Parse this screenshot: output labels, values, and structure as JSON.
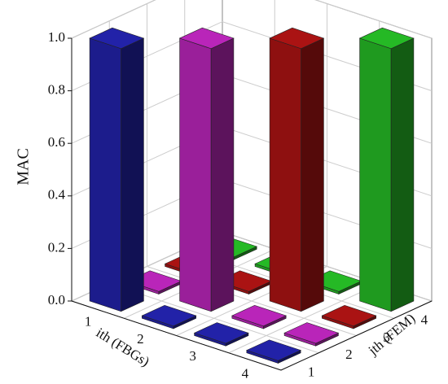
{
  "chart_data": {
    "type": "bar3d",
    "zlabel": "MAC",
    "xlabel": "ith (FBGs)",
    "ylabel": "jth (FEM)",
    "x_categories": [
      "1",
      "2",
      "3",
      "4"
    ],
    "y_categories": [
      "1",
      "2",
      "3",
      "4"
    ],
    "values": [
      [
        1.0,
        0.01,
        0.01,
        0.01
      ],
      [
        0.01,
        1.0,
        0.01,
        0.01
      ],
      [
        0.01,
        0.01,
        1.0,
        0.01
      ],
      [
        0.01,
        0.01,
        0.01,
        1.0
      ]
    ],
    "colors": [
      "#1c1c8c",
      "#9a1f9a",
      "#8e1010",
      "#1f9a1f"
    ],
    "zlim": [
      0,
      1
    ],
    "zticks": [
      {
        "value": 0,
        "label": "0.0"
      },
      0.2,
      0.4,
      0.6,
      0.8,
      {
        "value": 1,
        "label": "1.0"
      }
    ],
    "grid": true
  }
}
